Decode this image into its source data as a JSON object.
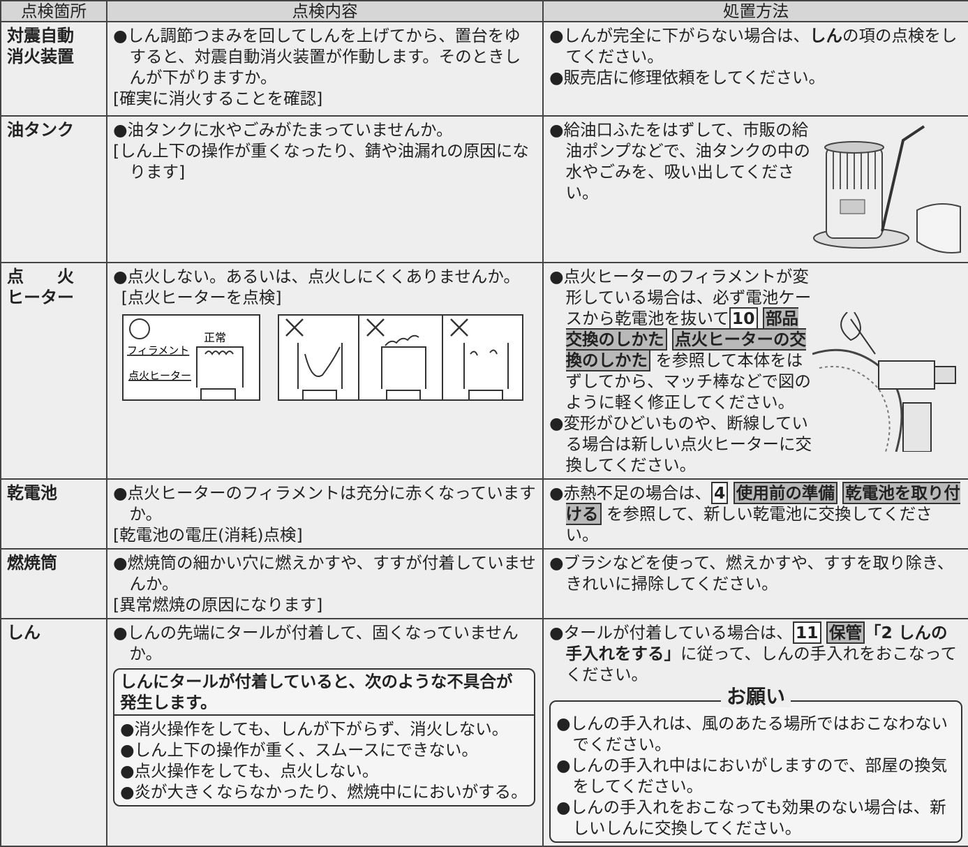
{
  "table": {
    "header": [
      "点検箇所",
      "点検内容",
      "処置方法"
    ],
    "rows": [
      {
        "location": [
          "対震自動",
          "消火装置"
        ],
        "content": [
          "●しん調節つまみを回してしんを上げてから、置台をゆすると、対震自動消火装置が作動します。そのときしんが下がりますか。",
          "[確実に消火することを確認]"
        ],
        "action": [
          [
            "●しんが完全に下がらない場合は、",
            "しん",
            "の項の点検をしてください。"
          ],
          [
            "●販売店に修理依頼をしてください。"
          ]
        ]
      },
      {
        "location": [
          "油タンク"
        ],
        "content": [
          "●油タンクに水やごみがたまっていませんか。",
          "[しん上下の操作が重くなったり、錆や油漏れの原因になります]"
        ],
        "action": [
          [
            "●給油口ふたをはずして、市販の給油ポンプなどで、油タンクの中の水やごみを、吸い出してください。"
          ]
        ]
      },
      {
        "location": [
          "点　　火",
          "ヒーター"
        ],
        "content": [
          "●点火しない。あるいは、点火しにくくありませんか。",
          "[点火ヒーターを点検]"
        ],
        "diagram": {
          "filament": "フィラメント",
          "normal": "正常",
          "heater": "点火ヒーター"
        },
        "action": [
          [
            "●点火ヒーターのフィラメントが変形している場合は、必ず電池ケースから乾電池を抜いて",
            "10",
            "部品交換のしかた",
            "点火ヒーターの交換のしかた",
            "を参照して本体をはずしてから、マッチ棒などで図のように軽く修正してください。"
          ],
          [
            "●変形がひどいものや、断線している場合は新しい点火ヒーターに交換してください。"
          ]
        ]
      },
      {
        "location": [
          "乾電池"
        ],
        "content": [
          "●点火ヒーターのフィラメントは充分に赤くなっていますか。",
          "[乾電池の電圧(消耗)点検]"
        ],
        "action": [
          [
            "●赤熱不足の場合は、",
            "4",
            "使用前の準備",
            "乾電池を取り付ける",
            "を参照して、新しい乾電池に交換してください。"
          ]
        ]
      },
      {
        "location": [
          "燃焼筒"
        ],
        "content": [
          "●燃焼筒の細かい穴に燃えかすや、すすが付着していませんか。",
          "[異常燃焼の原因になります]"
        ],
        "action": [
          [
            "●ブラシなどを使って、燃えかすや、すすを取り除き、きれいに掃除してください。"
          ]
        ]
      },
      {
        "location": [
          "しん"
        ],
        "content": [
          "●しんの先端にタールが付着して、固くなっていませんか。"
        ],
        "box": {
          "title": "しんにタールが付着していると、次のような不具合が発生します。",
          "items": [
            "●消火操作をしても、しんが下がらず、消火しない。",
            "●しん上下の操作が重く、スムースにできない。",
            "●点火操作をしても、点火しない。",
            "●炎が大きくならなかったり、燃焼中ににおいがする。"
          ]
        },
        "action": [
          [
            "●タールが付着している場合は、",
            "11",
            "保管",
            "「2 しんの手入れをする」",
            "に従って、しんの手入れをおこなってください。"
          ]
        ],
        "note": {
          "title": "お願い",
          "items": [
            "●しんの手入れは、風のあたる場所ではおこなわないでください。",
            "●しんの手入れ中はにおいがしますので、部屋の換気をしてください。",
            "●しんの手入れをおこなっても効果のない場合は、新しいしんに交換してください。"
          ]
        }
      }
    ]
  }
}
